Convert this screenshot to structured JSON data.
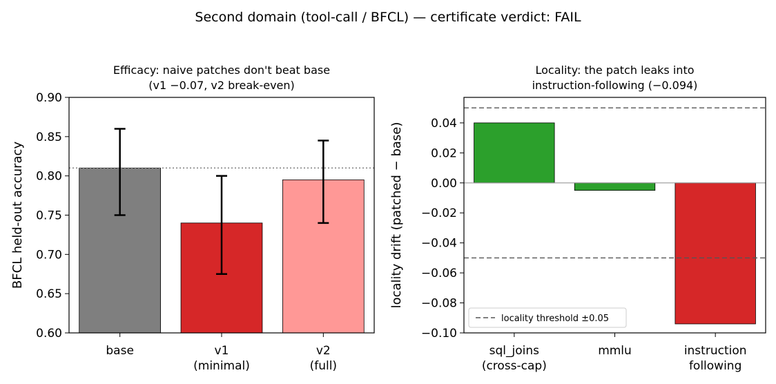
{
  "suptitle": "Second domain (tool-call / BFCL) — certificate verdict: FAIL",
  "chart_data": [
    {
      "type": "bar",
      "title_lines": [
        "Efficacy: naive patches don't beat base",
        "(v1 −0.07, v2 break-even)"
      ],
      "xlabel": "",
      "ylabel": "BFCL held-out accuracy",
      "categories": [
        [
          "base"
        ],
        [
          "v1",
          "(minimal)"
        ],
        [
          "v2",
          "(full)"
        ]
      ],
      "values": [
        0.81,
        0.74,
        0.795
      ],
      "error_bars": [
        [
          0.75,
          0.86
        ],
        [
          0.675,
          0.8
        ],
        [
          0.74,
          0.845
        ]
      ],
      "colors": [
        "#7f7f7f",
        "#d62728",
        "#ff9896"
      ],
      "reference_line": {
        "y": 0.81,
        "style": "dotted",
        "color": "#808080"
      },
      "ylim": [
        0.6,
        0.9
      ],
      "yticks": [
        0.6,
        0.65,
        0.7,
        0.75,
        0.8,
        0.85,
        0.9
      ],
      "ytick_labels": [
        "0.60",
        "0.65",
        "0.70",
        "0.75",
        "0.80",
        "0.85",
        "0.90"
      ],
      "grid": false
    },
    {
      "type": "bar",
      "title_lines": [
        "Locality: the patch leaks into",
        "instruction-following (−0.094)"
      ],
      "xlabel": "",
      "ylabel": "locality drift (patched − base)",
      "categories": [
        [
          "sql_joins",
          "(cross-cap)"
        ],
        [
          "mmlu"
        ],
        [
          "instruction",
          "following"
        ]
      ],
      "values": [
        0.04,
        -0.005,
        -0.094
      ],
      "colors": [
        "#2ca02c",
        "#2ca02c",
        "#d62728"
      ],
      "threshold_lines": [
        0.05,
        -0.05
      ],
      "zero_line": true,
      "legend": {
        "label": "locality threshold ±0.05",
        "placement": "lower-left"
      },
      "ylim": [
        -0.1,
        0.057
      ],
      "yticks": [
        0.04,
        0.02,
        0.0,
        -0.02,
        -0.04,
        -0.06,
        -0.08,
        -0.1
      ],
      "ytick_labels": [
        "0.04",
        "0.02",
        "0.00",
        "−0.02",
        "−0.04",
        "−0.06",
        "−0.08",
        "−0.10"
      ],
      "grid": false
    }
  ]
}
